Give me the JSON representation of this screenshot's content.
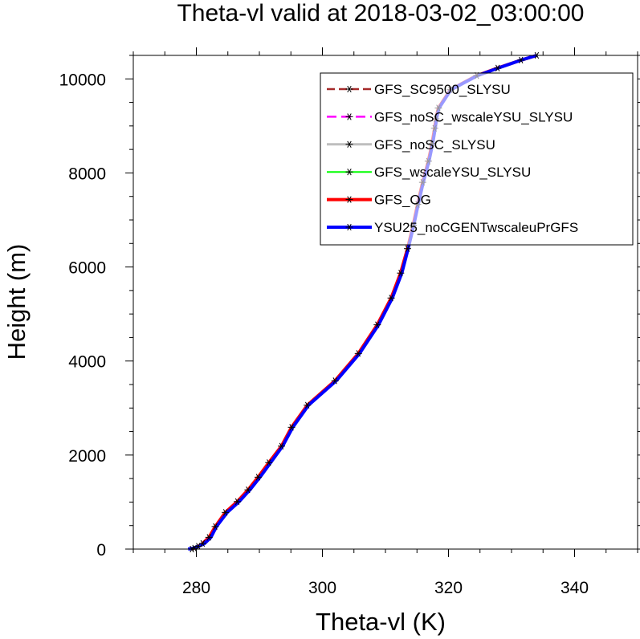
{
  "chart_data": {
    "type": "line",
    "title": "Theta-vl valid at 2018-03-02_03:00:00",
    "xlabel": "Theta-vl (K)",
    "ylabel": "Height (m)",
    "xlim": [
      270,
      350
    ],
    "ylim": [
      0,
      10500
    ],
    "xticks": [
      280,
      300,
      320,
      340
    ],
    "yticks": [
      0,
      2000,
      4000,
      6000,
      8000,
      10000
    ],
    "legend_position": "top-right",
    "grid": false,
    "series": [
      {
        "name": "GFS_SC9500_SLYSU",
        "color": "#a52a2a",
        "dash": "10,5",
        "width": 2.5,
        "x": [
          279.3,
          279.7,
          280.3,
          281.0,
          282.0,
          283.0,
          284.6,
          286.5,
          288.2,
          289.8,
          291.5,
          293.5,
          295.1,
          297.6,
          302.0,
          305.7,
          308.7,
          310.9,
          312.4,
          313.5,
          314.4,
          315.1,
          315.9,
          316.8,
          317.4,
          317.8,
          318.0,
          318.4,
          320.3,
          324.5,
          327.8,
          331.5,
          334.0
        ],
        "y": [
          0,
          20,
          60,
          120,
          250,
          480,
          780,
          1010,
          1260,
          1530,
          1840,
          2190,
          2590,
          3060,
          3580,
          4160,
          4770,
          5340,
          5870,
          6390,
          6890,
          7330,
          7800,
          8250,
          8630,
          8950,
          9150,
          9380,
          9770,
          10070,
          10230,
          10400,
          10500
        ]
      },
      {
        "name": "GFS_noSC_wscaleYSU_SLYSU",
        "color": "#ff00ff",
        "dash": "12,6",
        "width": 2.5,
        "x": [
          279.3,
          279.7,
          280.3,
          281.0,
          282.0,
          283.0,
          284.6,
          286.5,
          288.2,
          289.8,
          291.5,
          293.5,
          295.1,
          297.6,
          302.0,
          305.7,
          308.7,
          310.9,
          312.4,
          313.5,
          314.4,
          315.1,
          315.9,
          316.8,
          317.4,
          317.8,
          318.0,
          318.4,
          320.3,
          324.5,
          327.8,
          331.5,
          334.0
        ],
        "y": [
          0,
          20,
          60,
          120,
          250,
          480,
          780,
          1010,
          1260,
          1530,
          1840,
          2190,
          2590,
          3060,
          3580,
          4160,
          4770,
          5340,
          5870,
          6390,
          6890,
          7330,
          7800,
          8250,
          8630,
          8950,
          9150,
          9380,
          9770,
          10070,
          10230,
          10400,
          10500
        ]
      },
      {
        "name": "GFS_noSC_SLYSU",
        "color": "#bebebe",
        "dash": "",
        "width": 3,
        "x": [
          279.3,
          279.7,
          280.3,
          281.0,
          282.0,
          283.0,
          284.6,
          286.5,
          288.2,
          289.8,
          291.5,
          293.5,
          295.1,
          297.6,
          302.0,
          305.7,
          308.7,
          310.9,
          312.4,
          313.5,
          314.4,
          315.1,
          315.9,
          316.8,
          317.4,
          317.8,
          318.0,
          318.4,
          320.3,
          324.5,
          327.8,
          331.5,
          334.0
        ],
        "y": [
          0,
          20,
          60,
          120,
          250,
          480,
          780,
          1010,
          1260,
          1530,
          1840,
          2190,
          2590,
          3060,
          3580,
          4160,
          4770,
          5340,
          5870,
          6390,
          6890,
          7330,
          7800,
          8250,
          8630,
          8950,
          9150,
          9380,
          9770,
          10070,
          10230,
          10400,
          10500
        ]
      },
      {
        "name": "GFS_wscaleYSU_SLYSU",
        "color": "#00ff00",
        "dash": "",
        "width": 2,
        "x": [
          279.3,
          279.7,
          280.3,
          281.0,
          282.0,
          283.0,
          284.6,
          286.5,
          288.2,
          289.8,
          291.5,
          293.5,
          295.1,
          297.6,
          302.0,
          305.7,
          308.7,
          310.9,
          312.4,
          313.5,
          314.4,
          315.1,
          315.9,
          316.8,
          317.6,
          318.0,
          318.2,
          318.5,
          320.3,
          324.5,
          327.8,
          331.5,
          334.0
        ],
        "y": [
          0,
          20,
          60,
          120,
          250,
          480,
          780,
          1010,
          1260,
          1530,
          1840,
          2190,
          2590,
          3060,
          3580,
          4160,
          4770,
          5340,
          5870,
          6390,
          6890,
          7330,
          7800,
          8250,
          8630,
          8950,
          9150,
          9380,
          9770,
          10070,
          10230,
          10400,
          10500
        ]
      },
      {
        "name": "GFS_OG",
        "color": "#ff0000",
        "dash": "",
        "width": 4,
        "x": [
          279.3,
          279.7,
          280.3,
          281.0,
          282.0,
          283.0,
          284.6,
          286.5,
          288.2,
          289.8,
          291.5,
          293.5,
          295.1,
          297.6,
          302.0,
          305.7,
          308.7,
          310.9,
          312.4,
          313.5,
          314.4,
          315.1,
          315.9,
          316.8,
          317.4,
          317.8,
          318.0,
          318.4,
          320.3,
          324.5,
          327.8,
          331.5,
          334.0
        ],
        "y": [
          0,
          20,
          60,
          120,
          250,
          480,
          780,
          1010,
          1260,
          1530,
          1840,
          2190,
          2590,
          3060,
          3580,
          4160,
          4770,
          5340,
          5870,
          6390,
          6890,
          7330,
          7800,
          8250,
          8630,
          8950,
          9150,
          9380,
          9770,
          10070,
          10230,
          10400,
          10500
        ]
      },
      {
        "name": "YSU25_noCGENTwscaleuPrGFS",
        "color": "#0000ff",
        "dash": "",
        "width": 4,
        "x": [
          278.7,
          279.5,
          280.4,
          281.3,
          282.3,
          283.2,
          284.9,
          286.8,
          288.5,
          290.1,
          291.8,
          293.7,
          295.3,
          297.8,
          302.2,
          305.9,
          308.9,
          311.1,
          312.6,
          313.6,
          314.5,
          315.2,
          316.0,
          316.9,
          317.5,
          317.9,
          318.1,
          318.5,
          320.4,
          324.6,
          327.9,
          331.5,
          334.0
        ],
        "y": [
          0,
          20,
          60,
          120,
          250,
          480,
          780,
          1010,
          1260,
          1530,
          1840,
          2190,
          2590,
          3060,
          3580,
          4160,
          4770,
          5340,
          5870,
          6390,
          6890,
          7330,
          7800,
          8250,
          8630,
          8950,
          9150,
          9380,
          9770,
          10070,
          10230,
          10400,
          10500
        ]
      }
    ]
  }
}
